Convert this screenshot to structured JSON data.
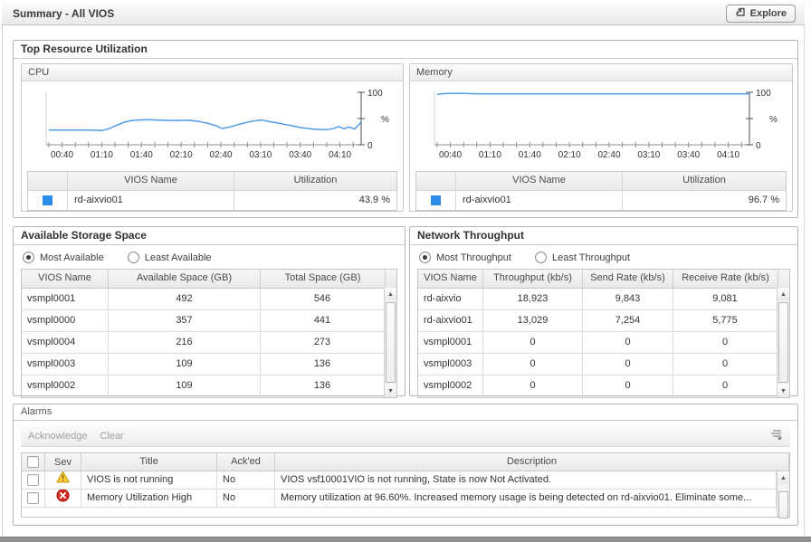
{
  "titlebar": {
    "title": "Summary - All VIOS",
    "explore_label": "Explore"
  },
  "colors": {
    "line": "#4f9ce8",
    "swatch": "#2d8ce8",
    "warning": "#ffcf3e",
    "error": "#d42a1e"
  },
  "top_resource": {
    "title": "Top Resource Utilization",
    "cpu": {
      "title": "CPU",
      "legend_headers": {
        "name": "VIOS Name",
        "value": "Utilization"
      },
      "legend_row": {
        "name": "rd-aixvio01",
        "value": "43.9 %"
      }
    },
    "memory": {
      "title": "Memory",
      "legend_headers": {
        "name": "VIOS Name",
        "value": "Utilization"
      },
      "legend_row": {
        "name": "rd-aixvio01",
        "value": "96.7 %"
      }
    }
  },
  "chart_data": [
    {
      "type": "line",
      "title": "CPU",
      "ylabel": "%",
      "ylim": [
        0,
        100
      ],
      "xlim": [
        28,
        266
      ],
      "x_ticks": [
        [
          40,
          "00:40"
        ],
        [
          70,
          "01:10"
        ],
        [
          100,
          "01:40"
        ],
        [
          130,
          "02:10"
        ],
        [
          160,
          "02:40"
        ],
        [
          190,
          "03:10"
        ],
        [
          220,
          "03:40"
        ],
        [
          250,
          "04:10"
        ]
      ],
      "minor_ticks": {
        "start": 30,
        "step": 10,
        "end": 260
      },
      "series": [
        {
          "name": "rd-aixvio01",
          "points": [
            [
              30,
              28
            ],
            [
              45,
              28
            ],
            [
              58,
              28
            ],
            [
              66,
              27.5
            ],
            [
              70,
              27
            ],
            [
              76,
              31
            ],
            [
              82,
              38
            ],
            [
              88,
              44
            ],
            [
              94,
              46.5
            ],
            [
              100,
              47.5
            ],
            [
              106,
              48
            ],
            [
              113,
              47
            ],
            [
              121,
              46.3
            ],
            [
              129,
              46.4
            ],
            [
              136,
              46.8
            ],
            [
              143,
              44.5
            ],
            [
              150,
              41
            ],
            [
              156,
              36.5
            ],
            [
              161,
              31
            ],
            [
              167,
              34
            ],
            [
              173,
              38.5
            ],
            [
              180,
              43
            ],
            [
              186,
              46
            ],
            [
              191,
              47
            ],
            [
              197,
              44
            ],
            [
              203,
              41.5
            ],
            [
              209,
              38.5
            ],
            [
              215,
              35.5
            ],
            [
              221,
              32.5
            ],
            [
              227,
              30.5
            ],
            [
              233,
              29.3
            ],
            [
              241,
              29
            ],
            [
              246,
              31.5
            ],
            [
              249,
              35
            ],
            [
              253,
              30.5
            ],
            [
              257,
              34
            ],
            [
              261,
              30
            ],
            [
              266,
              43
            ]
          ]
        }
      ]
    },
    {
      "type": "line",
      "title": "Memory",
      "ylabel": "%",
      "ylim": [
        0,
        100
      ],
      "xlim": [
        28,
        266
      ],
      "x_ticks": [
        [
          40,
          "00:40"
        ],
        [
          70,
          "01:10"
        ],
        [
          100,
          "01:40"
        ],
        [
          130,
          "02:10"
        ],
        [
          160,
          "02:40"
        ],
        [
          190,
          "03:10"
        ],
        [
          220,
          "03:40"
        ],
        [
          250,
          "04:10"
        ]
      ],
      "minor_ticks": {
        "start": 30,
        "step": 10,
        "end": 260
      },
      "series": [
        {
          "name": "rd-aixvio01",
          "points": [
            [
              30,
              96.2
            ],
            [
              36,
              97.6
            ],
            [
              43,
              98
            ],
            [
              50,
              97.7
            ],
            [
              58,
              97.3
            ],
            [
              70,
              97.1
            ],
            [
              100,
              97
            ],
            [
              140,
              97
            ],
            [
              180,
              97
            ],
            [
              220,
              97
            ],
            [
              250,
              97
            ],
            [
              266,
              97.1
            ]
          ]
        }
      ]
    }
  ],
  "storage": {
    "title": "Available Storage Space",
    "radios": [
      {
        "label": "Most Available",
        "selected": true
      },
      {
        "label": "Least Available",
        "selected": false
      }
    ],
    "headers": [
      "VIOS Name",
      "Available Space (GB)",
      "Total Space (GB)"
    ],
    "rows": [
      [
        "vsmpl0001",
        "492",
        "546"
      ],
      [
        "vsmpl0000",
        "357",
        "441"
      ],
      [
        "vsmpl0004",
        "216",
        "273"
      ],
      [
        "vsmpl0003",
        "109",
        "136"
      ],
      [
        "vsmpl0002",
        "109",
        "136"
      ]
    ]
  },
  "network": {
    "title": "Network Throughput",
    "radios": [
      {
        "label": "Most Throughput",
        "selected": true
      },
      {
        "label": "Least Throughput",
        "selected": false
      }
    ],
    "headers": [
      "VIOS Name",
      "Throughput (kb/s)",
      "Send Rate (kb/s)",
      "Receive Rate (kb/s)"
    ],
    "rows": [
      [
        "rd-aixvio",
        "18,923",
        "9,843",
        "9,081"
      ],
      [
        "rd-aixvio01",
        "13,029",
        "7,254",
        "5,775"
      ],
      [
        "vsmpl0001",
        "0",
        "0",
        "0"
      ],
      [
        "vsmpl0003",
        "0",
        "0",
        "0"
      ],
      [
        "vsmpl0002",
        "0",
        "0",
        "0"
      ]
    ]
  },
  "alarms": {
    "title": "Alarms",
    "toolbar": {
      "acknowledge_label": "Acknowledge",
      "clear_label": "Clear"
    },
    "headers": {
      "sev": "Sev",
      "title": "Title",
      "acked": "Ack'ed",
      "description": "Description"
    },
    "rows": [
      {
        "severity": "warning",
        "title": "VIOS is not running",
        "acked": "No",
        "description": "VIOS vsf10001VIO is not running, State is now Not Activated."
      },
      {
        "severity": "error",
        "title": "Memory Utilization High",
        "acked": "No",
        "description": "Memory utilization at 96.60%. Increased memory usage is being detected on rd-aixvio01. Eliminate some..."
      }
    ]
  }
}
